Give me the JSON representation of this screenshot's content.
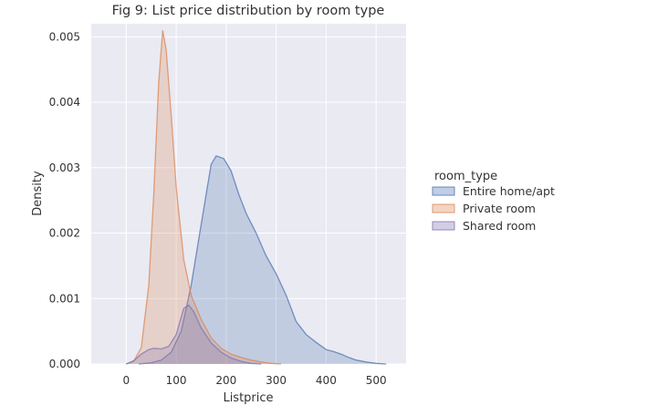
{
  "chart_data": {
    "type": "area",
    "title": "Fig 9: List price distribution by room type",
    "xlabel": "Listprice",
    "ylabel": "Density",
    "xlim": [
      -70,
      560
    ],
    "ylim": [
      0,
      0.0052
    ],
    "x_ticks": [
      0,
      100,
      200,
      300,
      400,
      500
    ],
    "y_ticks": [
      0.0,
      0.001,
      0.002,
      0.003,
      0.004,
      0.005
    ],
    "x_tick_labels": [
      "0",
      "100",
      "200",
      "300",
      "400",
      "500"
    ],
    "y_tick_labels": [
      "0.000",
      "0.001",
      "0.002",
      "0.003",
      "0.004",
      "0.005"
    ],
    "grid": true,
    "legend": {
      "title": "room_type",
      "placement": "right"
    },
    "series": [
      {
        "name": "Entire home/apt",
        "color": "#4c72b0",
        "points": [
          [
            25,
            0
          ],
          [
            50,
            2e-05
          ],
          [
            70,
            6e-05
          ],
          [
            90,
            0.00018
          ],
          [
            110,
            0.0005
          ],
          [
            130,
            0.0012
          ],
          [
            145,
            0.0019
          ],
          [
            160,
            0.0026
          ],
          [
            170,
            0.00305
          ],
          [
            180,
            0.00318
          ],
          [
            195,
            0.00314
          ],
          [
            210,
            0.00295
          ],
          [
            225,
            0.0026
          ],
          [
            240,
            0.0023
          ],
          [
            260,
            0.002
          ],
          [
            280,
            0.00165
          ],
          [
            300,
            0.00138
          ],
          [
            320,
            0.00105
          ],
          [
            340,
            0.00065
          ],
          [
            360,
            0.00045
          ],
          [
            380,
            0.00033
          ],
          [
            400,
            0.00022
          ],
          [
            415,
            0.00019
          ],
          [
            430,
            0.00015
          ],
          [
            445,
            0.0001
          ],
          [
            460,
            6e-05
          ],
          [
            480,
            3e-05
          ],
          [
            500,
            1e-05
          ],
          [
            520,
            0
          ]
        ]
      },
      {
        "name": "Private room",
        "color": "#dd8452",
        "points": [
          [
            0,
            0
          ],
          [
            15,
            4e-05
          ],
          [
            30,
            0.00025
          ],
          [
            45,
            0.0012
          ],
          [
            55,
            0.0026
          ],
          [
            65,
            0.0043
          ],
          [
            73,
            0.0051
          ],
          [
            80,
            0.0048
          ],
          [
            90,
            0.0038
          ],
          [
            100,
            0.0027
          ],
          [
            115,
            0.0016
          ],
          [
            130,
            0.00105
          ],
          [
            150,
            0.00068
          ],
          [
            170,
            0.0004
          ],
          [
            190,
            0.00024
          ],
          [
            210,
            0.00015
          ],
          [
            230,
            0.0001
          ],
          [
            250,
            6e-05
          ],
          [
            270,
            3e-05
          ],
          [
            290,
            1e-05
          ],
          [
            310,
            0
          ]
        ]
      },
      {
        "name": "Shared room",
        "color": "#8172b3",
        "points": [
          [
            0,
            0
          ],
          [
            15,
            5e-05
          ],
          [
            30,
            0.00015
          ],
          [
            45,
            0.00022
          ],
          [
            55,
            0.00024
          ],
          [
            70,
            0.00023
          ],
          [
            85,
            0.00027
          ],
          [
            100,
            0.00045
          ],
          [
            115,
            0.00085
          ],
          [
            125,
            0.0009
          ],
          [
            135,
            0.0008
          ],
          [
            150,
            0.00055
          ],
          [
            170,
            0.00032
          ],
          [
            190,
            0.00018
          ],
          [
            210,
            9e-05
          ],
          [
            230,
            4e-05
          ],
          [
            250,
            1e-05
          ],
          [
            270,
            0
          ]
        ]
      }
    ]
  }
}
